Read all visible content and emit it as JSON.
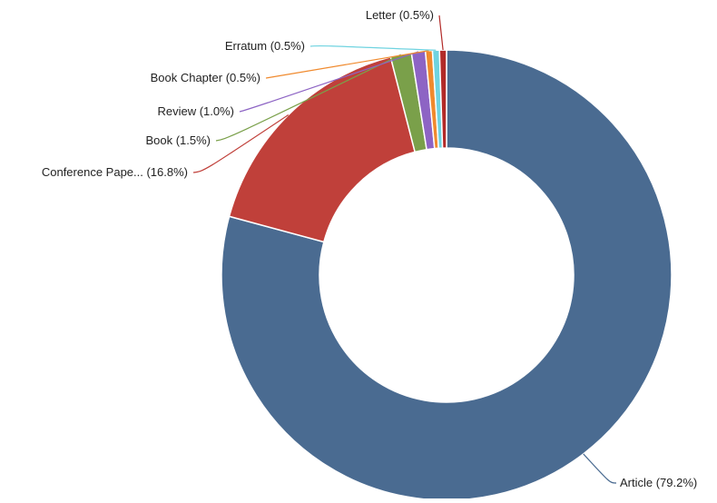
{
  "chart_data": {
    "type": "pie",
    "variant": "donut",
    "title": "",
    "legend": "none",
    "slices": [
      {
        "name": "Article",
        "value": 79.2,
        "label": "Article (79.2%)",
        "color": "#4a6b91"
      },
      {
        "name": "Conference Pape...",
        "value": 16.8,
        "label": "Conference Pape... (16.8%)",
        "color": "#c0403a"
      },
      {
        "name": "Book",
        "value": 1.5,
        "label": "Book (1.5%)",
        "color": "#7aa04a"
      },
      {
        "name": "Review",
        "value": 1.0,
        "label": "Review (1.0%)",
        "color": "#8d64c4"
      },
      {
        "name": "Book Chapter",
        "value": 0.5,
        "label": "Book Chapter (0.5%)",
        "color": "#f08a2e"
      },
      {
        "name": "Erratum",
        "value": 0.5,
        "label": "Erratum (0.5%)",
        "color": "#6fd3e0"
      },
      {
        "name": "Letter",
        "value": 0.5,
        "label": "Letter (0.5%)",
        "color": "#b22a28"
      }
    ]
  }
}
